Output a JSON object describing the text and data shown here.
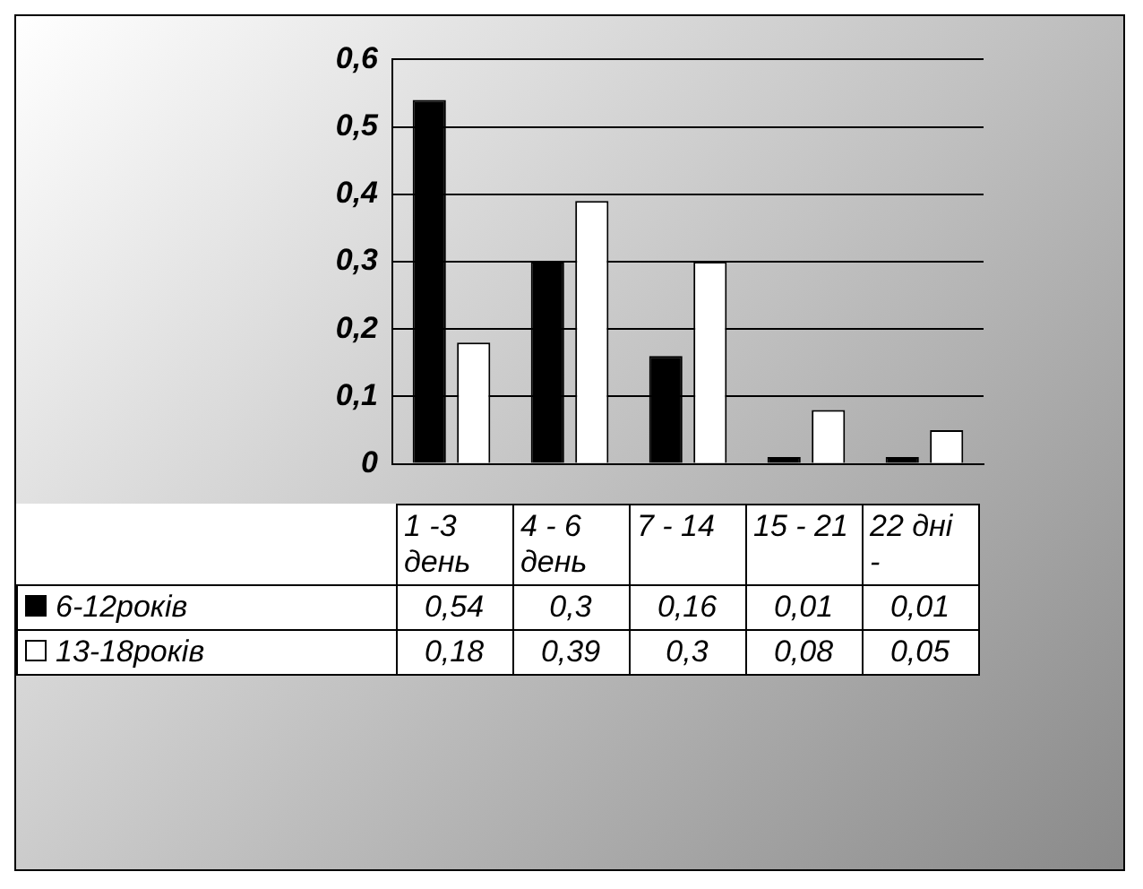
{
  "chart_data": {
    "type": "bar",
    "categories": [
      "1 -3 день",
      "4 - 6 день",
      "7 - 14",
      "15 - 21",
      "22 дні -"
    ],
    "series": [
      {
        "name": "6-12років",
        "color": "#000000",
        "values": [
          0.54,
          0.3,
          0.16,
          0.01,
          0.01
        ],
        "value_labels": [
          "0,54",
          "0,3",
          "0,16",
          "0,01",
          "0,01"
        ]
      },
      {
        "name": "13-18років",
        "color": "#ffffff",
        "values": [
          0.18,
          0.39,
          0.3,
          0.08,
          0.05
        ],
        "value_labels": [
          "0,18",
          "0,39",
          "0,3",
          "0,08",
          "0,05"
        ]
      }
    ],
    "ylim": [
      0,
      0.6
    ],
    "yticks": [
      0,
      {
        "value": 0.1,
        "label": "0,1"
      },
      {
        "value": 0.2,
        "label": "0,2"
      },
      {
        "value": 0.3,
        "label": "0,3"
      },
      {
        "value": 0.4,
        "label": "0,4"
      },
      {
        "value": 0.5,
        "label": "0,5"
      },
      {
        "value": 0.6,
        "label": "0,6"
      }
    ],
    "grid": "y",
    "legend": "bottom"
  }
}
